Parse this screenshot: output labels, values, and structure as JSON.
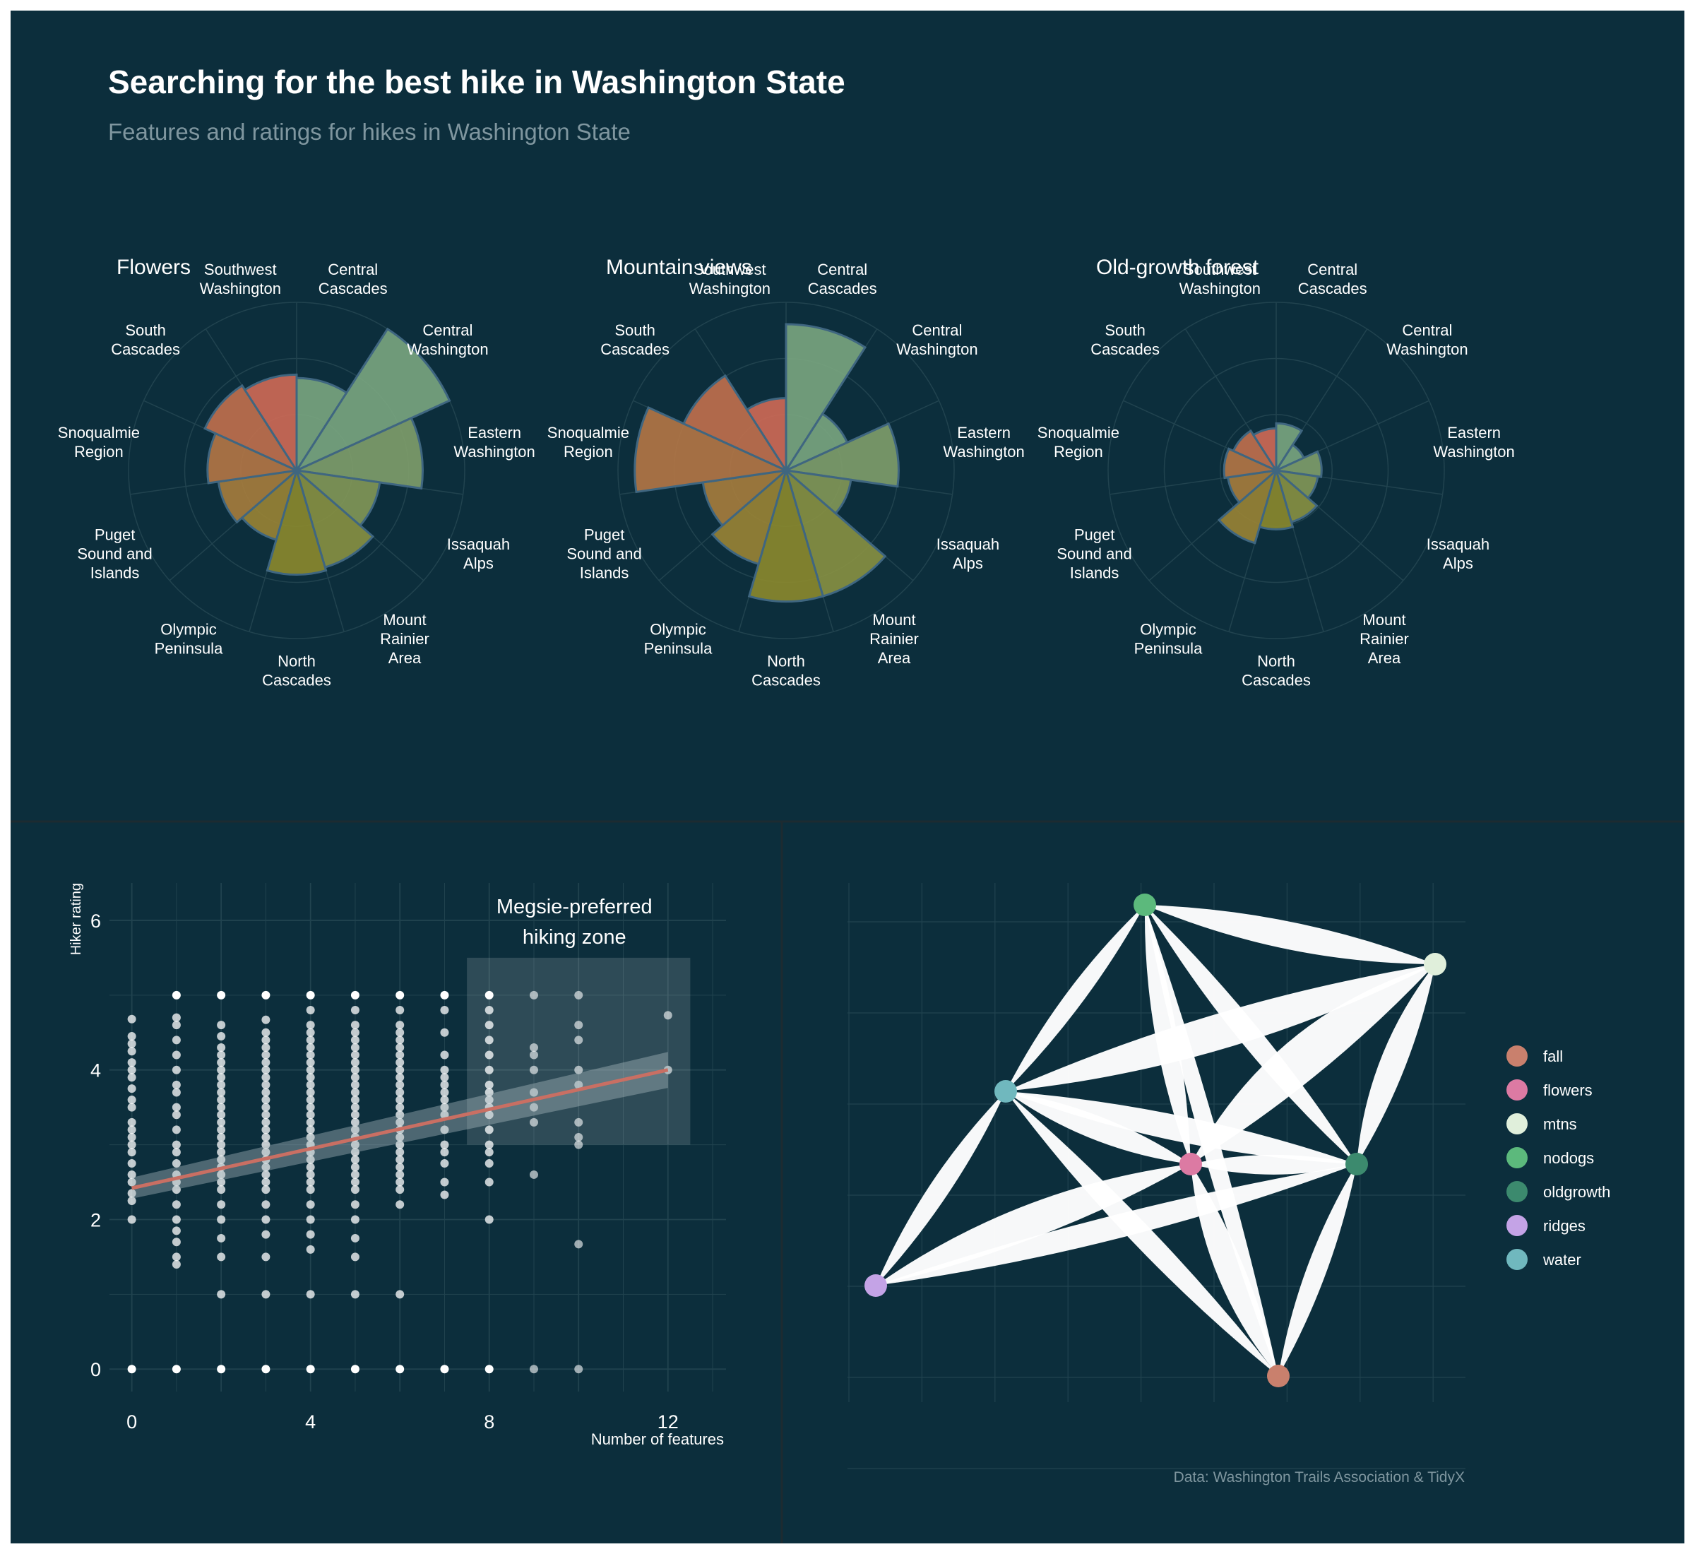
{
  "title": "Searching for the best hike in Washington State",
  "subtitle": "Features and ratings for hikes in Washington State",
  "caption": "Data: Washington Trails Association & TidyX",
  "colors": {
    "background": "#0c2e3c",
    "text": "#ffffff",
    "subtext": "#7f969f",
    "grid": "#21434f",
    "trend_line": "#c96f63",
    "petal_red": "#d06a55",
    "petal_green": "#7aa67f",
    "petal_olive": "#8c8a2c",
    "petal_outline": "#3f6680"
  },
  "chart_data": [
    {
      "type": "polar-bar",
      "title": "Flowers",
      "categories": [
        "Central Cascades",
        "Central Washington",
        "Eastern Washington",
        "Issaquah Alps",
        "Mount Rainier Area",
        "North Cascades",
        "Olympic Peninsula",
        "Puget Sound and Islands",
        "Snoqualmie Region",
        "South Cascades",
        "Southwest Washington"
      ],
      "values": [
        0.55,
        1.0,
        0.75,
        0.5,
        0.6,
        0.62,
        0.43,
        0.47,
        0.53,
        0.6,
        0.57
      ],
      "grid": true
    },
    {
      "type": "polar-bar",
      "title": "Mountain views",
      "categories": [
        "Central Cascades",
        "Central Washington",
        "Eastern Washington",
        "Issaquah Alps",
        "Mount Rainier Area",
        "North Cascades",
        "Olympic Peninsula",
        "Puget Sound and Islands",
        "Snoqualmie Region",
        "South Cascades",
        "Southwest Washington"
      ],
      "values": [
        0.87,
        0.4,
        0.67,
        0.39,
        0.78,
        0.78,
        0.58,
        0.5,
        0.9,
        0.67,
        0.43
      ],
      "grid": true
    },
    {
      "type": "polar-bar",
      "title": "Old-growth forest",
      "categories": [
        "Central Cascades",
        "Central Washington",
        "Eastern Washington",
        "Issaquah Alps",
        "Mount Rainier Area",
        "North Cascades",
        "Olympic Peninsula",
        "Puget Sound and Islands",
        "Snoqualmie Region",
        "South Cascades",
        "Southwest Washington"
      ],
      "values": [
        0.28,
        0.18,
        0.27,
        0.25,
        0.32,
        0.35,
        0.45,
        0.29,
        0.31,
        0.28,
        0.25
      ],
      "grid": true
    },
    {
      "type": "scatter",
      "xlabel": "Number of features",
      "ylabel": "Hiker rating",
      "xlim": [
        -0.5,
        13.3
      ],
      "ylim": [
        -0.3,
        6.5
      ],
      "x_ticks": [
        0,
        4,
        8,
        12
      ],
      "y_ticks": [
        0,
        2,
        4,
        6
      ],
      "trend_line": {
        "x": [
          0,
          12
        ],
        "y": [
          2.42,
          4.0
        ]
      },
      "annotation": {
        "text_lines": [
          "Megsie-preferred",
          "hiking zone"
        ],
        "x": [
          7.5,
          12.5
        ],
        "y": [
          3.0,
          5.5
        ]
      },
      "points_by_feature": [
        {
          "x": 0,
          "y": [
            0,
            2.0,
            2.25,
            2.35,
            2.5,
            2.6,
            2.75,
            2.9,
            3.0,
            3.1,
            3.2,
            3.3,
            3.5,
            3.6,
            3.75,
            3.9,
            4.0,
            4.1,
            4.25,
            4.35,
            4.45,
            4.68
          ]
        },
        {
          "x": 1,
          "y": [
            0,
            1.4,
            1.5,
            1.7,
            1.85,
            2.0,
            2.2,
            2.4,
            2.5,
            2.6,
            2.75,
            2.9,
            3.0,
            3.2,
            3.4,
            3.5,
            3.7,
            3.8,
            4.0,
            4.2,
            4.4,
            4.6,
            4.7,
            5.0
          ]
        },
        {
          "x": 2,
          "y": [
            0,
            1.0,
            1.5,
            1.75,
            2.0,
            2.2,
            2.4,
            2.5,
            2.6,
            2.7,
            2.8,
            2.9,
            3.0,
            3.1,
            3.2,
            3.3,
            3.4,
            3.5,
            3.6,
            3.7,
            3.8,
            3.9,
            4.0,
            4.1,
            4.2,
            4.3,
            4.45,
            4.6,
            5.0
          ]
        },
        {
          "x": 3,
          "y": [
            0,
            1.0,
            1.5,
            1.8,
            2.0,
            2.2,
            2.4,
            2.5,
            2.6,
            2.7,
            2.8,
            2.9,
            3.0,
            3.1,
            3.2,
            3.3,
            3.4,
            3.5,
            3.6,
            3.7,
            3.8,
            3.9,
            4.0,
            4.1,
            4.2,
            4.3,
            4.4,
            4.5,
            4.67,
            5.0
          ]
        },
        {
          "x": 4,
          "y": [
            0,
            1.0,
            1.6,
            1.8,
            2.0,
            2.2,
            2.4,
            2.5,
            2.6,
            2.7,
            2.8,
            2.9,
            3.0,
            3.1,
            3.2,
            3.3,
            3.4,
            3.5,
            3.6,
            3.7,
            3.8,
            3.9,
            4.0,
            4.1,
            4.2,
            4.3,
            4.4,
            4.5,
            4.6,
            4.8,
            5.0
          ]
        },
        {
          "x": 5,
          "y": [
            0,
            1.0,
            1.5,
            1.75,
            2.0,
            2.2,
            2.4,
            2.5,
            2.6,
            2.7,
            2.8,
            2.9,
            3.0,
            3.1,
            3.2,
            3.3,
            3.4,
            3.5,
            3.6,
            3.7,
            3.8,
            3.9,
            4.0,
            4.1,
            4.2,
            4.3,
            4.4,
            4.5,
            4.6,
            4.8,
            5.0
          ]
        },
        {
          "x": 6,
          "y": [
            0,
            1.0,
            2.2,
            2.4,
            2.5,
            2.6,
            2.7,
            2.8,
            2.9,
            3.0,
            3.1,
            3.2,
            3.3,
            3.4,
            3.5,
            3.6,
            3.7,
            3.8,
            3.9,
            4.0,
            4.1,
            4.2,
            4.3,
            4.4,
            4.5,
            4.6,
            4.8,
            5.0
          ]
        },
        {
          "x": 7,
          "y": [
            0,
            2.33,
            2.5,
            2.75,
            2.9,
            3.0,
            3.2,
            3.4,
            3.5,
            3.6,
            3.7,
            3.8,
            3.9,
            4.0,
            4.2,
            4.5,
            4.8,
            5.0
          ]
        },
        {
          "x": 8,
          "y": [
            0,
            2.0,
            2.5,
            2.75,
            2.9,
            3.0,
            3.2,
            3.4,
            3.5,
            3.6,
            3.7,
            3.8,
            4.0,
            4.2,
            4.4,
            4.6,
            4.8,
            5.0
          ]
        },
        {
          "x": 9,
          "y": [
            0,
            2.6,
            3.3,
            3.5,
            3.7,
            4.0,
            4.2,
            4.3,
            5.0
          ]
        },
        {
          "x": 10,
          "y": [
            0,
            1.67,
            3.0,
            3.1,
            3.3,
            3.8,
            4.0,
            4.4,
            4.6,
            5.0
          ]
        },
        {
          "x": 12,
          "y": [
            4.0,
            4.73
          ]
        }
      ]
    },
    {
      "type": "network",
      "legend_position": "right",
      "nodes": [
        {
          "name": "fall",
          "color": "#c9806d"
        },
        {
          "name": "flowers",
          "color": "#dc7aa3"
        },
        {
          "name": "mtns",
          "color": "#e0efdb"
        },
        {
          "name": "nodogs",
          "color": "#5cb97c"
        },
        {
          "name": "oldgrowth",
          "color": "#3c8a6e"
        },
        {
          "name": "ridges",
          "color": "#c4a3e6"
        },
        {
          "name": "water",
          "color": "#70b8be"
        }
      ],
      "edges": [
        {
          "from": "nodogs",
          "to": "mtns",
          "weight": 0.6
        },
        {
          "from": "nodogs",
          "to": "water",
          "weight": 0.35
        },
        {
          "from": "nodogs",
          "to": "flowers",
          "weight": 0.45
        },
        {
          "from": "nodogs",
          "to": "oldgrowth",
          "weight": 0.45
        },
        {
          "from": "nodogs",
          "to": "fall",
          "weight": 0.35
        },
        {
          "from": "water",
          "to": "mtns",
          "weight": 0.8
        },
        {
          "from": "water",
          "to": "flowers",
          "weight": 0.5
        },
        {
          "from": "water",
          "to": "oldgrowth",
          "weight": 0.55
        },
        {
          "from": "water",
          "to": "ridges",
          "weight": 0.4
        },
        {
          "from": "water",
          "to": "fall",
          "weight": 0.45
        },
        {
          "from": "mtns",
          "to": "flowers",
          "weight": 1.0
        },
        {
          "from": "mtns",
          "to": "oldgrowth",
          "weight": 0.55
        },
        {
          "from": "flowers",
          "to": "ridges",
          "weight": 0.75
        },
        {
          "from": "flowers",
          "to": "oldgrowth",
          "weight": 0.4
        },
        {
          "from": "flowers",
          "to": "fall",
          "weight": 0.6
        },
        {
          "from": "ridges",
          "to": "oldgrowth",
          "weight": 0.5
        },
        {
          "from": "oldgrowth",
          "to": "fall",
          "weight": 0.4
        }
      ]
    }
  ]
}
